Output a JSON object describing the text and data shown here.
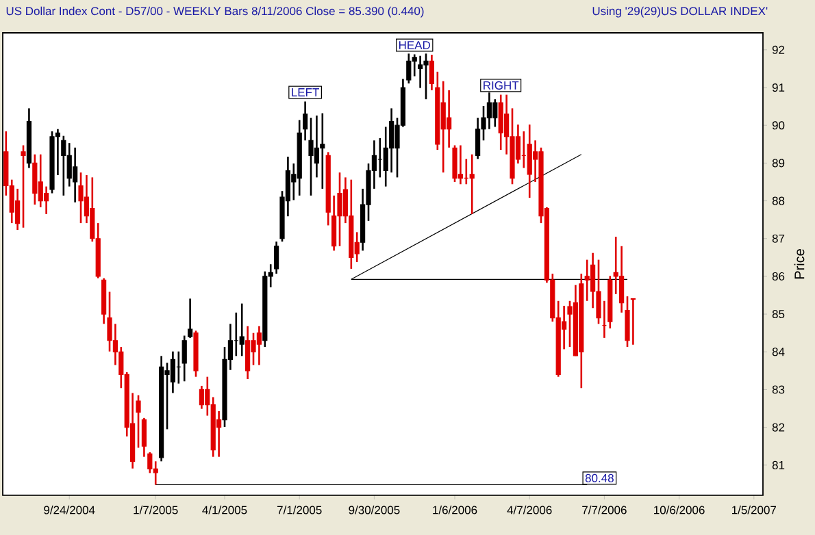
{
  "chart_data": {
    "type": "candlestick",
    "title": "US Dollar Index Cont - D57/00  - WEEKLY Bars  8/11/2006 Close = 85.390 (0.440)",
    "subtitle": "Using '29(29)US DOLLAR INDEX'",
    "ylabel": "Price",
    "xlim": [
      "2004-07-05",
      "2007-01-16"
    ],
    "ylim": [
      80.2,
      92.45
    ],
    "xticks": [
      {
        "value": "2004-09-24",
        "label": "9/24/2004"
      },
      {
        "value": "2005-01-07",
        "label": "1/7/2005"
      },
      {
        "value": "2005-04-01",
        "label": "4/1/2005"
      },
      {
        "value": "2005-07-01",
        "label": "7/1/2005"
      },
      {
        "value": "2005-09-30",
        "label": "9/30/2005"
      },
      {
        "value": "2006-01-06",
        "label": "1/6/2006"
      },
      {
        "value": "2006-04-07",
        "label": "4/7/2006"
      },
      {
        "value": "2006-07-07",
        "label": "7/7/2006"
      },
      {
        "value": "2006-10-06",
        "label": "10/6/2006"
      },
      {
        "value": "2007-01-05",
        "label": "1/5/2007"
      }
    ],
    "yticks": [
      81,
      82,
      83,
      84,
      85,
      86,
      87,
      88,
      89,
      90,
      91,
      92
    ],
    "x": [
      "2004-07-09",
      "2004-07-16",
      "2004-07-23",
      "2004-07-30",
      "2004-08-06",
      "2004-08-13",
      "2004-08-20",
      "2004-08-27",
      "2004-09-03",
      "2004-09-10",
      "2004-09-17",
      "2004-09-24",
      "2004-10-01",
      "2004-10-08",
      "2004-10-15",
      "2004-10-22",
      "2004-10-29",
      "2004-11-05",
      "2004-11-12",
      "2004-11-19",
      "2004-11-26",
      "2004-12-03",
      "2004-12-10",
      "2004-12-17",
      "2004-12-24",
      "2004-12-31",
      "2005-01-07",
      "2005-01-14",
      "2005-01-21",
      "2005-01-28",
      "2005-02-04",
      "2005-02-11",
      "2005-02-18",
      "2005-02-25",
      "2005-03-04",
      "2005-03-11",
      "2005-03-18",
      "2005-03-25",
      "2005-04-01",
      "2005-04-08",
      "2005-04-15",
      "2005-04-22",
      "2005-04-29",
      "2005-05-06",
      "2005-05-13",
      "2005-05-20",
      "2005-05-27",
      "2005-06-03",
      "2005-06-10",
      "2005-06-17",
      "2005-06-24",
      "2005-07-01",
      "2005-07-08",
      "2005-07-15",
      "2005-07-22",
      "2005-07-29",
      "2005-08-05",
      "2005-08-12",
      "2005-08-19",
      "2005-08-26",
      "2005-09-02",
      "2005-09-09",
      "2005-09-16",
      "2005-09-23",
      "2005-09-30",
      "2005-10-07",
      "2005-10-14",
      "2005-10-21",
      "2005-10-28",
      "2005-11-04",
      "2005-11-11",
      "2005-11-18",
      "2005-11-25",
      "2005-12-02",
      "2005-12-09",
      "2005-12-16",
      "2005-12-23",
      "2005-12-30",
      "2006-01-06",
      "2006-01-13",
      "2006-01-20",
      "2006-01-27",
      "2006-02-03",
      "2006-02-10",
      "2006-02-17",
      "2006-02-24",
      "2006-03-03",
      "2006-03-10",
      "2006-03-17",
      "2006-03-24",
      "2006-03-31",
      "2006-04-07",
      "2006-04-14",
      "2006-04-21",
      "2006-04-28",
      "2006-05-05",
      "2006-05-12",
      "2006-05-19",
      "2006-05-26",
      "2006-06-02",
      "2006-06-09",
      "2006-06-16",
      "2006-06-23",
      "2006-06-30",
      "2006-07-07",
      "2006-07-14",
      "2006-07-21",
      "2006-07-28",
      "2006-08-04",
      "2006-08-11"
    ],
    "ohlc": [
      [
        89.3,
        89.84,
        88.14,
        88.4
      ],
      [
        88.4,
        88.56,
        87.41,
        87.7
      ],
      [
        88.0,
        88.32,
        87.23,
        87.4
      ],
      [
        89.3,
        89.47,
        87.29,
        89.2
      ],
      [
        89.0,
        90.45,
        88.87,
        90.1
      ],
      [
        89.0,
        89.23,
        87.9,
        88.2
      ],
      [
        88.5,
        89.23,
        87.83,
        88.0
      ],
      [
        88.2,
        88.38,
        87.65,
        88.0
      ],
      [
        88.3,
        89.84,
        88.2,
        89.7
      ],
      [
        89.7,
        89.9,
        88.68,
        89.8
      ],
      [
        89.2,
        89.72,
        88.14,
        89.6
      ],
      [
        88.6,
        89.53,
        88.38,
        89.2
      ],
      [
        88.5,
        89.41,
        87.96,
        88.9
      ],
      [
        88.4,
        88.75,
        87.41,
        88.0
      ],
      [
        88.1,
        88.68,
        87.41,
        87.6
      ],
      [
        87.8,
        88.62,
        86.92,
        87.0
      ],
      [
        87.0,
        87.41,
        85.95,
        86.0
      ],
      [
        85.9,
        85.95,
        84.74,
        85.0
      ],
      [
        84.9,
        85.59,
        84.01,
        84.3
      ],
      [
        84.3,
        84.74,
        83.65,
        84.0
      ],
      [
        84.0,
        84.13,
        83.04,
        83.4
      ],
      [
        83.4,
        83.46,
        81.76,
        82.0
      ],
      [
        82.1,
        82.91,
        80.91,
        81.1
      ],
      [
        82.7,
        82.85,
        81.46,
        82.4
      ],
      [
        82.2,
        82.25,
        81.22,
        81.5
      ],
      [
        81.3,
        81.34,
        80.79,
        80.9
      ],
      [
        80.9,
        81.1,
        80.48,
        80.8
      ],
      [
        81.2,
        83.89,
        81.1,
        83.6
      ],
      [
        83.4,
        83.71,
        81.95,
        83.5
      ],
      [
        83.2,
        84.01,
        82.91,
        83.8
      ],
      [
        83.6,
        84.01,
        83.16,
        83.6
      ],
      [
        83.7,
        84.43,
        83.22,
        84.3
      ],
      [
        84.4,
        85.41,
        84.37,
        84.6
      ],
      [
        84.5,
        84.56,
        83.34,
        83.5
      ],
      [
        83.0,
        83.1,
        82.49,
        82.6
      ],
      [
        83.0,
        83.34,
        82.31,
        82.6
      ],
      [
        82.6,
        82.8,
        81.22,
        81.4
      ],
      [
        82.2,
        82.43,
        81.22,
        82.0
      ],
      [
        82.2,
        84.13,
        82.01,
        83.8
      ],
      [
        83.8,
        84.74,
        83.52,
        84.3
      ],
      [
        84.3,
        85.04,
        83.89,
        84.3
      ],
      [
        84.2,
        85.28,
        83.89,
        84.4
      ],
      [
        84.3,
        84.68,
        83.28,
        83.5
      ],
      [
        84.3,
        84.5,
        83.65,
        84.0
      ],
      [
        84.5,
        84.68,
        83.65,
        84.2
      ],
      [
        84.3,
        86.13,
        84.13,
        86.0
      ],
      [
        86.0,
        86.32,
        85.71,
        86.1
      ],
      [
        86.2,
        86.92,
        86.07,
        86.8
      ],
      [
        87.0,
        88.26,
        86.92,
        88.1
      ],
      [
        88.0,
        89.17,
        87.59,
        88.8
      ],
      [
        88.5,
        88.99,
        88.02,
        88.7
      ],
      [
        88.6,
        90.14,
        88.14,
        89.8
      ],
      [
        89.9,
        90.63,
        89.6,
        90.3
      ],
      [
        89.2,
        90.2,
        88.14,
        89.6
      ],
      [
        89.0,
        90.26,
        88.62,
        89.4
      ],
      [
        89.4,
        90.32,
        88.32,
        89.5
      ],
      [
        89.2,
        89.29,
        87.35,
        87.7
      ],
      [
        87.6,
        88.14,
        86.68,
        86.8
      ],
      [
        88.2,
        88.75,
        86.8,
        87.6
      ],
      [
        88.3,
        88.62,
        87.41,
        87.6
      ],
      [
        87.6,
        88.56,
        86.2,
        86.5
      ],
      [
        86.9,
        87.17,
        86.38,
        86.6
      ],
      [
        86.9,
        88.32,
        86.68,
        87.9
      ],
      [
        87.9,
        88.99,
        87.47,
        88.8
      ],
      [
        88.8,
        89.6,
        88.32,
        89.2
      ],
      [
        89.1,
        89.66,
        88.62,
        89.1
      ],
      [
        88.8,
        89.96,
        88.38,
        89.4
      ],
      [
        89.4,
        90.45,
        88.75,
        90.1
      ],
      [
        89.4,
        90.2,
        88.62,
        90.0
      ],
      [
        90.0,
        91.23,
        89.96,
        91.0
      ],
      [
        91.2,
        91.9,
        91.11,
        91.7
      ],
      [
        91.7,
        91.88,
        91.3,
        91.8
      ],
      [
        91.5,
        91.84,
        90.99,
        91.6
      ],
      [
        91.6,
        91.9,
        90.69,
        91.7
      ],
      [
        91.7,
        91.87,
        90.93,
        91.1
      ],
      [
        91.0,
        91.42,
        89.35,
        89.5
      ],
      [
        90.6,
        91.17,
        88.75,
        89.9
      ],
      [
        90.2,
        90.93,
        89.41,
        89.9
      ],
      [
        89.4,
        89.47,
        88.5,
        88.6
      ],
      [
        88.7,
        89.47,
        88.44,
        88.6
      ],
      [
        88.6,
        89.11,
        88.44,
        88.6
      ],
      [
        88.7,
        89.23,
        87.65,
        88.6
      ],
      [
        89.2,
        90.2,
        89.11,
        89.9
      ],
      [
        89.9,
        90.51,
        89.6,
        90.2
      ],
      [
        90.2,
        90.87,
        89.9,
        90.6
      ],
      [
        90.2,
        90.69,
        89.96,
        90.6
      ],
      [
        90.6,
        90.81,
        89.35,
        89.8
      ],
      [
        90.3,
        90.81,
        89.23,
        89.7
      ],
      [
        89.7,
        90.45,
        88.44,
        88.6
      ],
      [
        89.7,
        90.02,
        88.99,
        89.1
      ],
      [
        89.2,
        89.84,
        88.87,
        89.2
      ],
      [
        89.5,
        90.02,
        88.08,
        88.7
      ],
      [
        89.3,
        89.6,
        88.5,
        89.1
      ],
      [
        89.3,
        89.41,
        87.41,
        87.6
      ],
      [
        87.8,
        87.83,
        85.83,
        85.9
      ],
      [
        85.9,
        86.07,
        84.8,
        84.9
      ],
      [
        84.9,
        85.35,
        83.34,
        83.4
      ],
      [
        84.8,
        85.22,
        84.07,
        84.6
      ],
      [
        85.2,
        85.35,
        84.13,
        85.0
      ],
      [
        85.3,
        85.77,
        83.89,
        83.9
      ],
      [
        85.8,
        86.07,
        83.04,
        84.0
      ],
      [
        86.0,
        86.44,
        85.35,
        85.9
      ],
      [
        86.3,
        86.62,
        85.16,
        85.6
      ],
      [
        85.6,
        86.44,
        84.74,
        84.9
      ],
      [
        84.7,
        85.35,
        84.37,
        84.7
      ],
      [
        85.9,
        86.01,
        84.62,
        84.8
      ],
      [
        86.1,
        87.05,
        85.53,
        86.0
      ],
      [
        86.0,
        86.8,
        85.04,
        85.3
      ],
      [
        85.1,
        85.47,
        84.13,
        84.3
      ],
      [
        85.41,
        85.41,
        84.19,
        85.39
      ]
    ],
    "colors": [
      "#e00000",
      "#e00000",
      "#e00000",
      "#e00000",
      "#000000",
      "#e00000",
      "#e00000",
      "#e00000",
      "#000000",
      "#000000",
      "#000000",
      "#000000",
      "#000000",
      "#e00000",
      "#e00000",
      "#e00000",
      "#e00000",
      "#e00000",
      "#e00000",
      "#e00000",
      "#e00000",
      "#e00000",
      "#e00000",
      "#e00000",
      "#e00000",
      "#e00000",
      "#e00000",
      "#000000",
      "#000000",
      "#000000",
      "#000000",
      "#000000",
      "#000000",
      "#e00000",
      "#e00000",
      "#e00000",
      "#e00000",
      "#e00000",
      "#000000",
      "#000000",
      "#000000",
      "#000000",
      "#e00000",
      "#e00000",
      "#e00000",
      "#000000",
      "#000000",
      "#000000",
      "#000000",
      "#000000",
      "#000000",
      "#000000",
      "#000000",
      "#000000",
      "#000000",
      "#000000",
      "#e00000",
      "#e00000",
      "#e00000",
      "#e00000",
      "#e00000",
      "#e00000",
      "#000000",
      "#000000",
      "#000000",
      "#000000",
      "#000000",
      "#000000",
      "#000000",
      "#000000",
      "#000000",
      "#000000",
      "#000000",
      "#000000",
      "#e00000",
      "#e00000",
      "#e00000",
      "#e00000",
      "#e00000",
      "#e00000",
      "#e00000",
      "#e00000",
      "#000000",
      "#000000",
      "#000000",
      "#000000",
      "#e00000",
      "#e00000",
      "#e00000",
      "#e00000",
      "#e00000",
      "#e00000",
      "#e00000",
      "#e00000",
      "#e00000",
      "#e00000",
      "#e00000",
      "#e00000",
      "#e00000",
      "#e00000",
      "#e00000",
      "#e00000",
      "#e00000",
      "#e00000",
      "#e00000",
      "#e00000",
      "#e00000",
      "#e00000",
      "#e00000",
      "#e00000"
    ],
    "series": [
      {
        "type": "line",
        "color": "#000000",
        "x": [
          "2005-09-02",
          "2006-08-04"
        ],
        "values": [
          85.92,
          85.92
        ]
      },
      {
        "type": "line",
        "color": "#000000",
        "x": [
          "2005-09-02",
          "2006-06-09"
        ],
        "values": [
          85.92,
          89.23
        ]
      },
      {
        "type": "line",
        "color": "#000000",
        "x": [
          "2005-01-07",
          "2006-06-16"
        ],
        "values": [
          80.48,
          80.48
        ]
      }
    ],
    "annotations": [
      {
        "text": "LEFT",
        "x": "2005-07-08",
        "y": 90.63
      },
      {
        "text": "HEAD",
        "x": "2005-11-18",
        "y": 91.88
      },
      {
        "text": "RIGHT",
        "x": "2006-03-03",
        "y": 90.81
      },
      "80.48"
    ]
  }
}
